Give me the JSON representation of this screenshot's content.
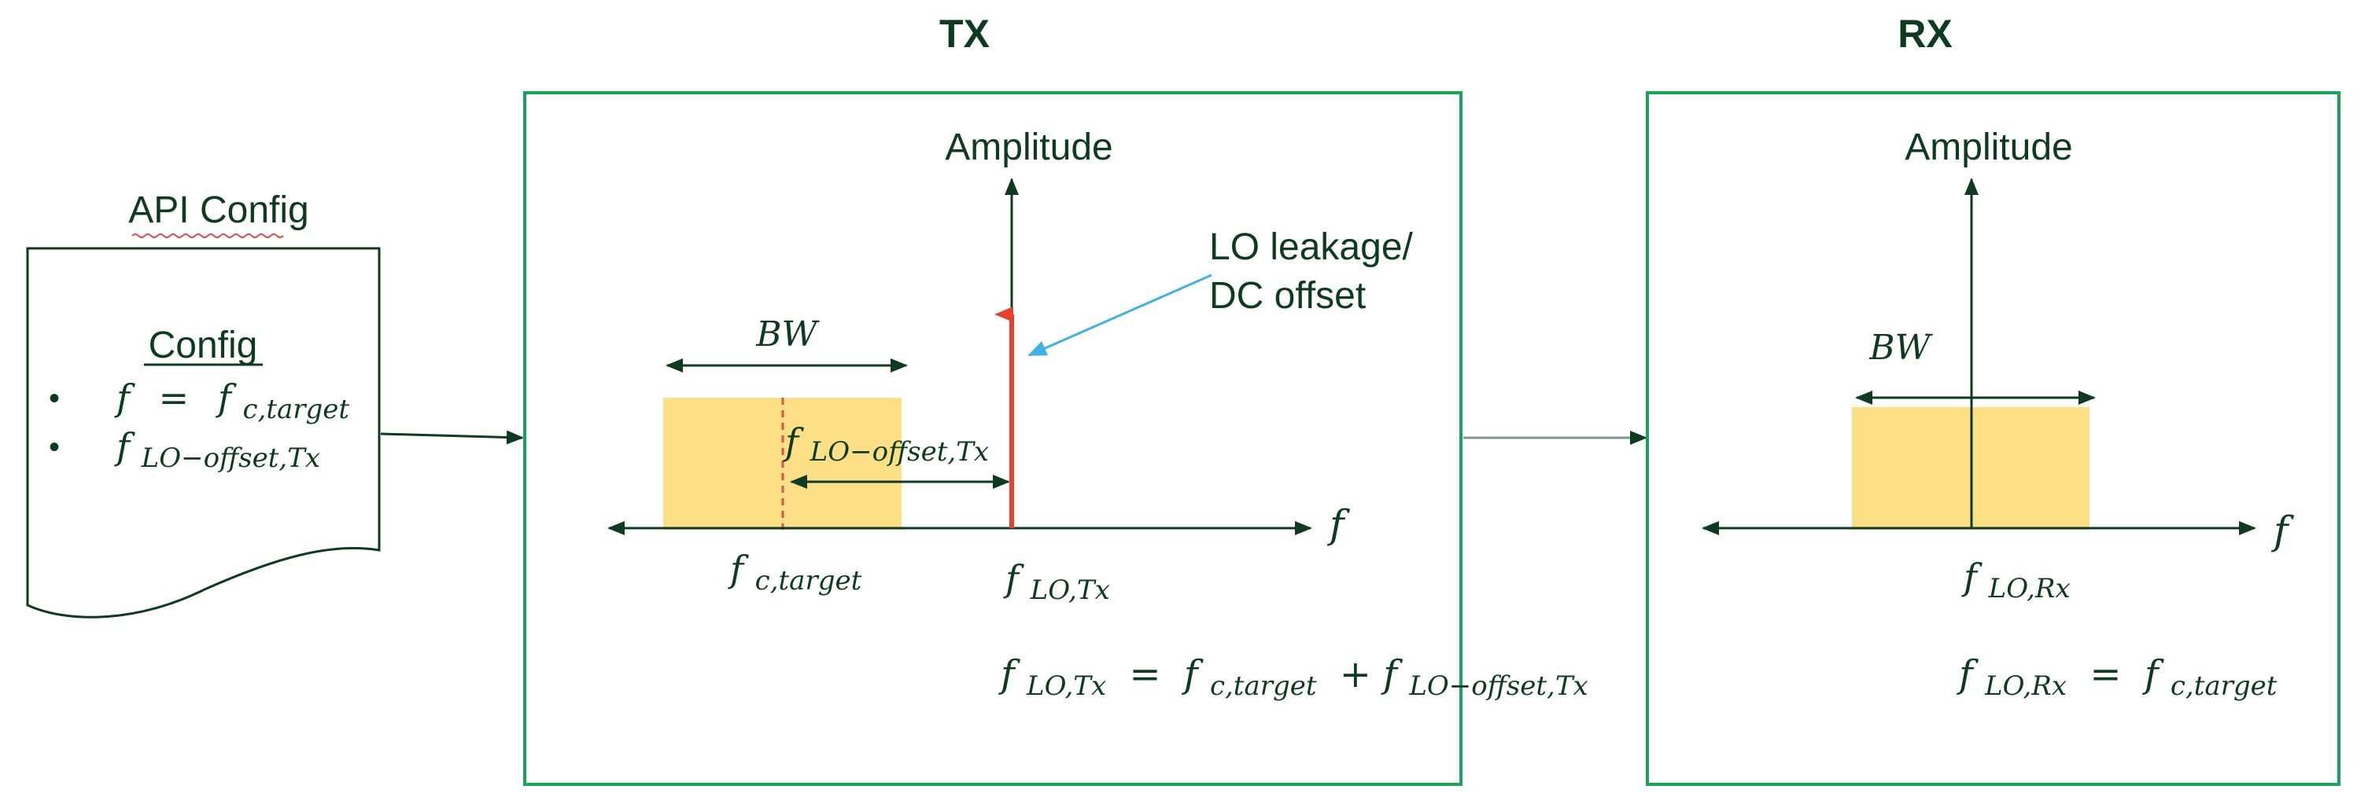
{
  "colors": {
    "text": "#0d3b1f",
    "frame": "#1aa35a",
    "band": "#fddf85",
    "center_line": "#d9534f",
    "lo_spike": "#e8402f",
    "annotation_arrow": "#3fb1e3",
    "link_arrow": "#7a9a8a"
  },
  "api_config": {
    "title": "API Config",
    "doc_heading": "Config",
    "bullets": [
      {
        "symbol": "•",
        "lhs": "f",
        "eq": "=",
        "main": "f",
        "sub": "c,target"
      },
      {
        "symbol": "•",
        "main": "f",
        "sub": "LO−offset,Tx"
      }
    ]
  },
  "tx": {
    "title": "TX",
    "y_axis_label": "Amplitude",
    "x_axis_label": "f",
    "bw_label": "BW",
    "offset_label": {
      "main": "f",
      "sub": "LO−offset,Tx"
    },
    "target_label": {
      "main": "f",
      "sub": "c,target"
    },
    "lo_label": {
      "main": "f",
      "sub": "LO,Tx"
    },
    "annotation": {
      "line1": "LO leakage/",
      "line2": "DC offset"
    },
    "equation": {
      "lhs": "f",
      "lhs_sub": "LO,Tx",
      "eq": "=",
      "t1": "f",
      "t1_sub": "c,target",
      "plus": "+",
      "t2": "f",
      "t2_sub": "LO−offset,Tx"
    }
  },
  "rx": {
    "title": "RX",
    "y_axis_label": "Amplitude",
    "x_axis_label": "f",
    "bw_label": "BW",
    "lo_label": {
      "main": "f",
      "sub": "LO,Rx"
    },
    "equation": {
      "lhs": "f",
      "lhs_sub": "LO,Rx",
      "eq": "=",
      "rhs": "f",
      "rhs_sub": "c,target"
    }
  }
}
